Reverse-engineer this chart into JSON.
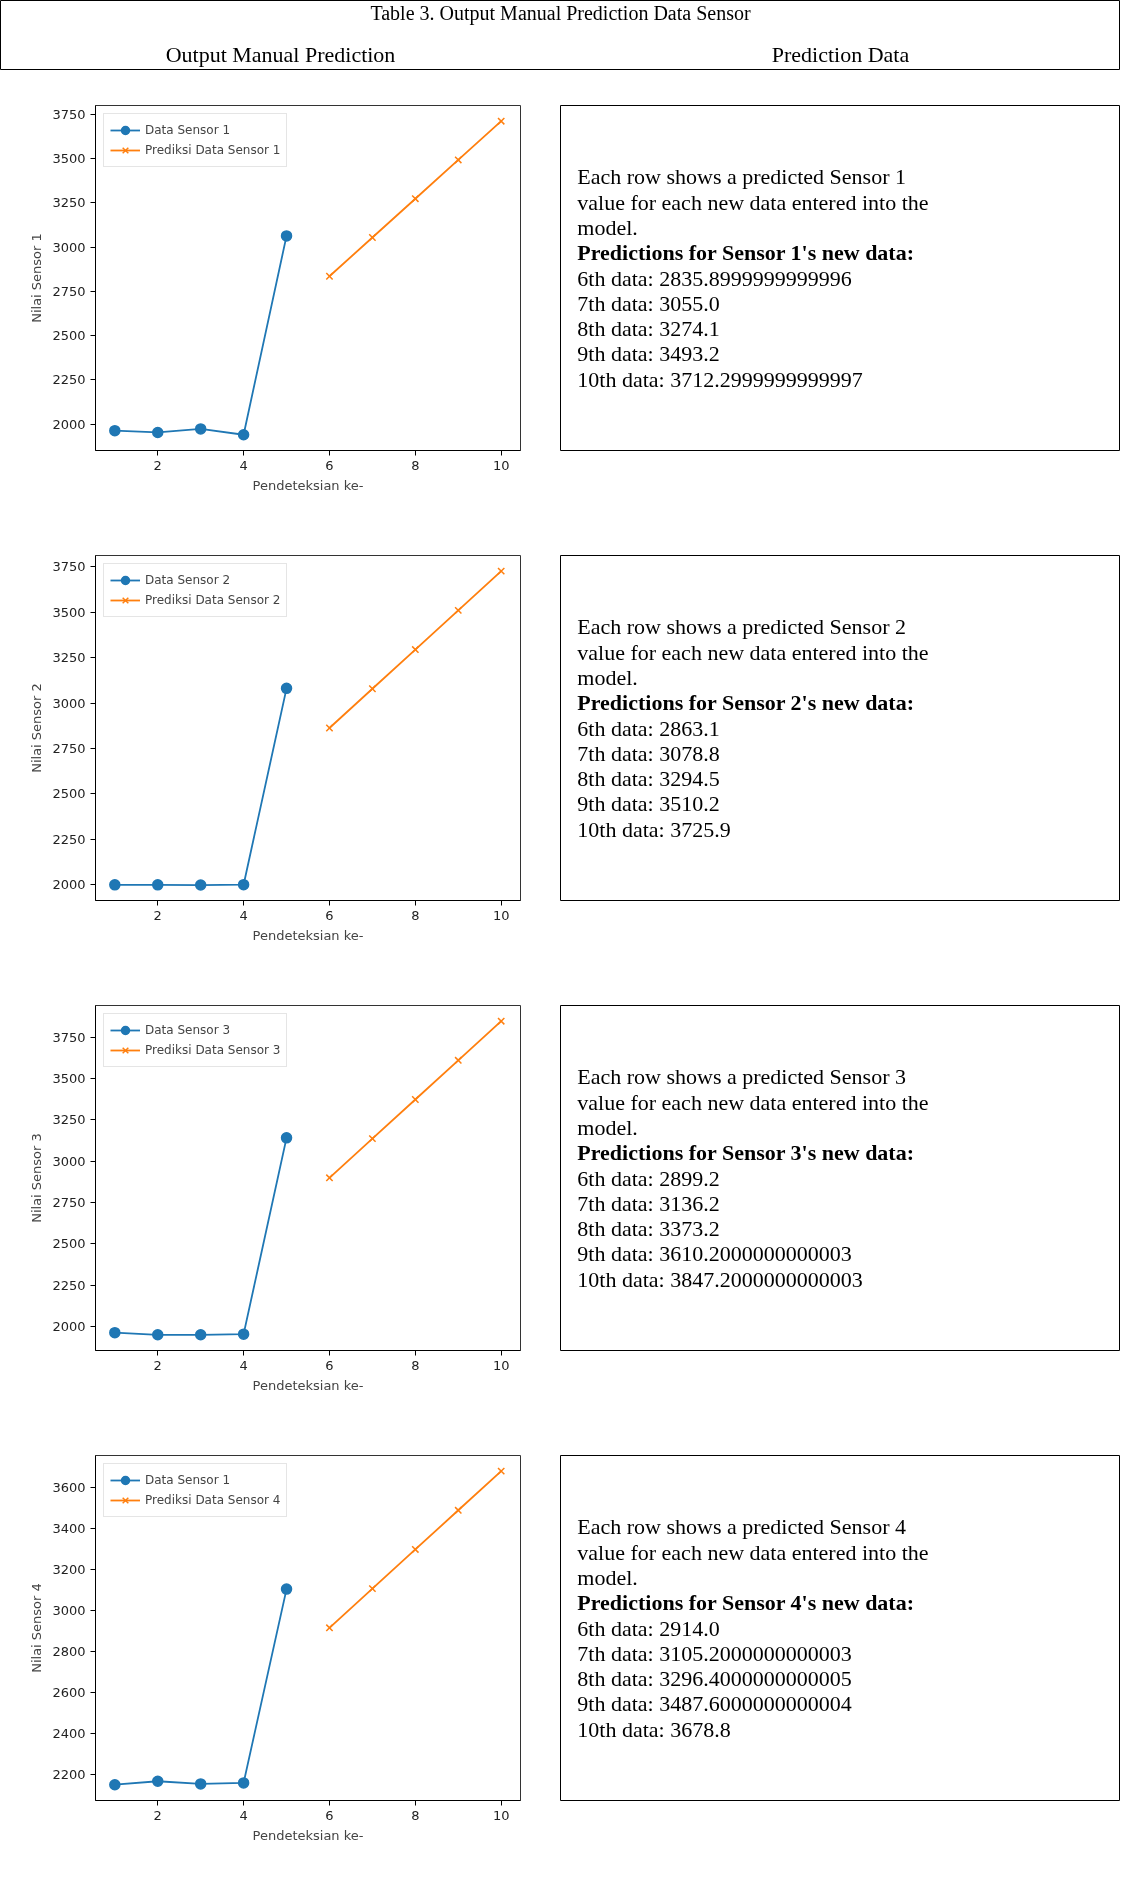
{
  "chart_data": [
    {
      "type": "other",
      "title": "Table 3. Output Manual Prediction Data Sensor",
      "annotations": [
        "Output Manual Prediction",
        "Prediction Data"
      ]
    },
    {
      "type": "line",
      "xlabel": "Pendeteksian ke-",
      "ylabel": "Nilai Sensor 1",
      "xlim": [
        0.55,
        10.45
      ],
      "ylim": [
        1851,
        3801
      ],
      "xticks": [
        2,
        4,
        6,
        8,
        10
      ],
      "yticks": [
        2000,
        2250,
        2500,
        2750,
        3000,
        3250,
        3500,
        3750
      ],
      "legend": "top left",
      "series": [
        {
          "name": "Data Sensor 1",
          "color": "#1f77b4",
          "marker": "circle",
          "x": [
            1,
            2,
            3,
            4,
            5
          ],
          "values": [
            1963,
            1953,
            1973,
            1940,
            3064
          ]
        },
        {
          "name": "Prediksi Data Sensor 1",
          "color": "#ff7f0e",
          "marker": "cross",
          "x": [
            6,
            7,
            8,
            9,
            10
          ],
          "values": [
            2835.9,
            3055.0,
            3274.1,
            3493.2,
            3712.3
          ]
        }
      ]
    },
    {
      "type": "other",
      "annotations": [
        "Each row shows a predicted Sensor 1",
        "value for each new data entered into the",
        "model.",
        "Predictions for Sensor 1's new data:",
        "6th data: 2835.8999999999996",
        "7th data: 3055.0",
        "8th data: 3274.1",
        "9th data: 3493.2",
        "10th data: 3712.2999999999997"
      ]
    },
    {
      "type": "line",
      "xlabel": "Pendeteksian ke-",
      "ylabel": "Nilai Sensor 2",
      "xlim": [
        0.55,
        10.45
      ],
      "ylim": [
        1914,
        3812
      ],
      "xticks": [
        2,
        4,
        6,
        8,
        10
      ],
      "yticks": [
        2000,
        2250,
        2500,
        2750,
        3000,
        3250,
        3500,
        3750
      ],
      "legend": "top left",
      "series": [
        {
          "name": "Data Sensor 2",
          "color": "#1f77b4",
          "marker": "circle",
          "x": [
            1,
            2,
            3,
            4,
            5
          ],
          "values": [
            2000,
            2000,
            1999,
            2001,
            3081
          ]
        },
        {
          "name": "Prediksi Data Sensor 2",
          "color": "#ff7f0e",
          "marker": "cross",
          "x": [
            6,
            7,
            8,
            9,
            10
          ],
          "values": [
            2863.1,
            3078.8,
            3294.5,
            3510.2,
            3725.9
          ]
        }
      ]
    },
    {
      "type": "other",
      "annotations": [
        "Each row shows a predicted Sensor 2",
        "value for each new data entered into the",
        "model.",
        "Predictions for Sensor 2's new data:",
        "6th data: 2863.1",
        "7th data: 3078.8",
        "8th data: 3294.5",
        "9th data: 3510.2",
        "10th data: 3725.9"
      ]
    },
    {
      "type": "line",
      "xlabel": "Pendeteksian ke-",
      "ylabel": "Nilai Sensor 3",
      "xlim": [
        0.55,
        10.45
      ],
      "ylim": [
        1854,
        3942
      ],
      "xticks": [
        2,
        4,
        6,
        8,
        10
      ],
      "yticks": [
        2000,
        2250,
        2500,
        2750,
        3000,
        3250,
        3500,
        3750
      ],
      "legend": "top left",
      "series": [
        {
          "name": "Data Sensor 3",
          "color": "#1f77b4",
          "marker": "circle",
          "x": [
            1,
            2,
            3,
            4,
            5
          ],
          "values": [
            1962,
            1949,
            1949,
            1953,
            3141
          ]
        },
        {
          "name": "Prediksi Data Sensor 3",
          "color": "#ff7f0e",
          "marker": "cross",
          "x": [
            6,
            7,
            8,
            9,
            10
          ],
          "values": [
            2899.2,
            3136.2,
            3373.2,
            3610.2,
            3847.2
          ]
        }
      ]
    },
    {
      "type": "other",
      "annotations": [
        "Each row shows a predicted Sensor 3",
        "value for each new data entered into the",
        "model.",
        "Predictions for Sensor 3's new data:",
        "6th data: 2899.2",
        "7th data: 3136.2",
        "8th data: 3373.2",
        "9th data: 3610.2000000000003",
        "10th data: 3847.2000000000003"
      ]
    },
    {
      "type": "line",
      "xlabel": "Pendeteksian ke-",
      "ylabel": "Nilai Sensor 4",
      "xlim": [
        0.55,
        10.45
      ],
      "ylim": [
        2071,
        3755
      ],
      "xticks": [
        2,
        4,
        6,
        8,
        10
      ],
      "yticks": [
        2200,
        2400,
        2600,
        2800,
        3000,
        3200,
        3400,
        3600
      ],
      "legend": "top left",
      "series": [
        {
          "name": "Data Sensor 1",
          "color": "#1f77b4",
          "marker": "circle",
          "x": [
            1,
            2,
            3,
            4,
            5
          ],
          "values": [
            2148,
            2165,
            2152,
            2157,
            3103
          ]
        },
        {
          "name": "Prediksi Data Sensor 4",
          "color": "#ff7f0e",
          "marker": "cross",
          "x": [
            6,
            7,
            8,
            9,
            10
          ],
          "values": [
            2914.0,
            3105.2,
            3296.4,
            3487.6,
            3678.8
          ]
        }
      ]
    },
    {
      "type": "other",
      "annotations": [
        "Each row shows a predicted Sensor 4",
        "value for each new data entered into the",
        "model.",
        "Predictions for Sensor 4's new data:",
        "6th data: 2914.0",
        "7th data: 3105.2000000000003",
        "8th data: 3296.4000000000005",
        "9th data: 3487.6000000000004",
        "10th data: 3678.8"
      ]
    }
  ]
}
